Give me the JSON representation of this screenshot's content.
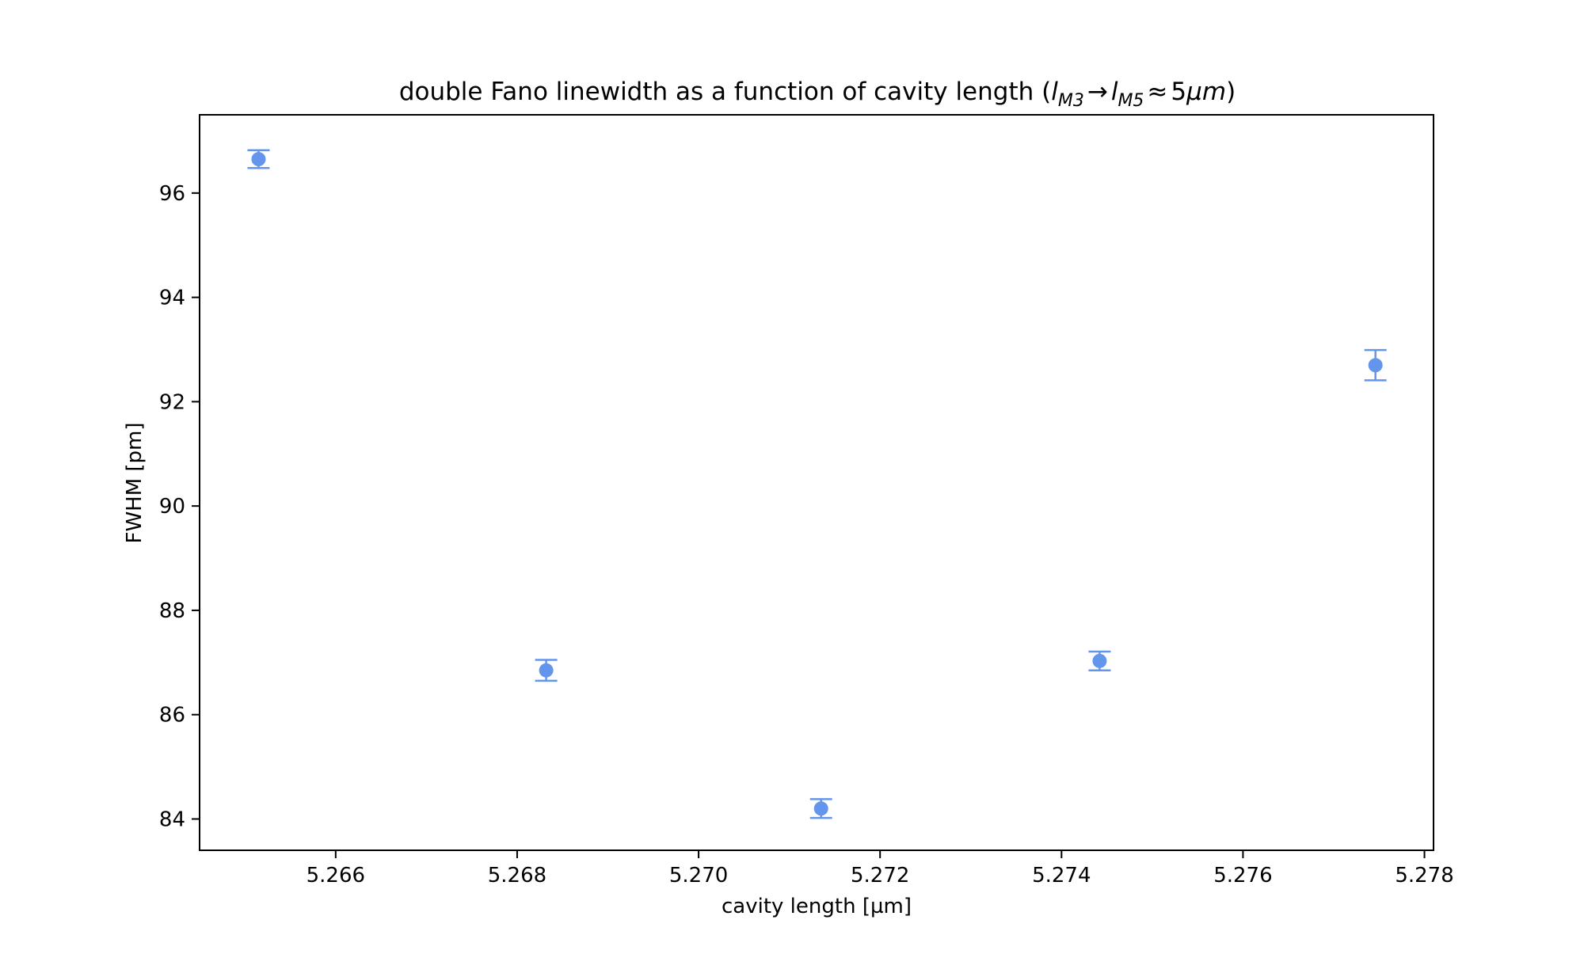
{
  "chart_data": {
    "type": "scatter",
    "title_parts": {
      "main": "double Fano linewidth as a function of cavity length (",
      "l1": "l",
      "sub1": "M3",
      "arrow": "→",
      "l2": "l",
      "sub2": "M5",
      "approx": "≈",
      "five": "5",
      "mu": "μ",
      "m": "m",
      "close": ")"
    },
    "xlabel": "cavity length [µm]",
    "ylabel": "FWHM [pm]",
    "xlim": [
      5.2645,
      5.2781
    ],
    "ylim": [
      83.4,
      97.5
    ],
    "xticks": [
      5.266,
      5.268,
      5.27,
      5.272,
      5.274,
      5.276,
      5.278
    ],
    "xtick_labels": [
      "5.266",
      "5.268",
      "5.270",
      "5.272",
      "5.274",
      "5.276",
      "5.278"
    ],
    "yticks": [
      84,
      86,
      88,
      90,
      92,
      94,
      96
    ],
    "ytick_labels": [
      "84",
      "86",
      "88",
      "90",
      "92",
      "94",
      "96"
    ],
    "grid": false,
    "color": "#6495ED",
    "series": [
      {
        "x": [
          5.26515,
          5.26832,
          5.27135,
          5.27442,
          5.27746
        ],
        "y": [
          96.65,
          86.85,
          84.2,
          87.03,
          92.7
        ],
        "yerr": [
          0.17,
          0.2,
          0.18,
          0.18,
          0.29
        ]
      }
    ]
  }
}
